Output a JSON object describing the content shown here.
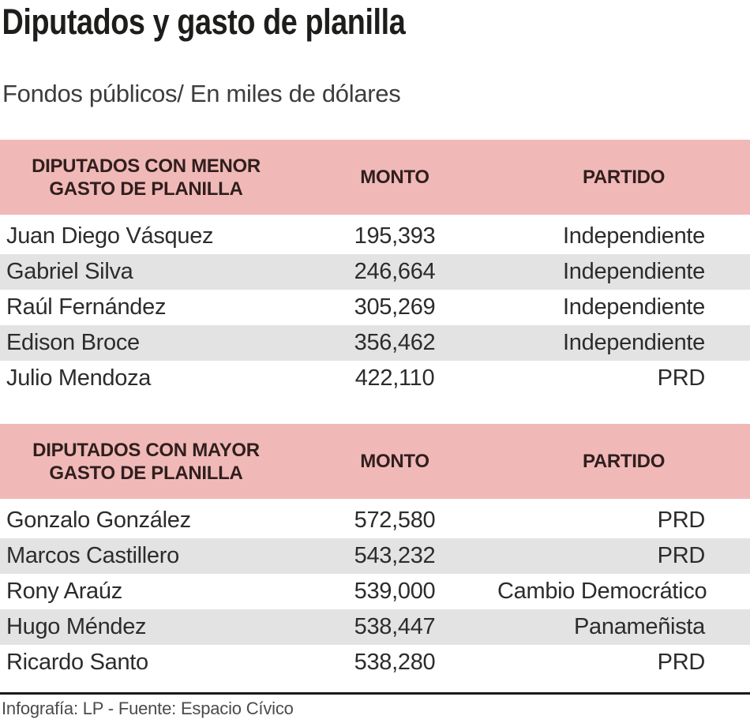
{
  "header": {
    "title": "Diputados y gasto de planilla",
    "subtitle": "Fondos públicos/ En miles de dólares"
  },
  "tables": [
    {
      "header": {
        "label_line1": "DIPUTADOS CON MENOR",
        "label_line2": "GASTO DE PLANILLA",
        "monto": "MONTO",
        "partido": "PARTIDO"
      },
      "rows": [
        {
          "name": "Juan Diego Vásquez",
          "monto": "195,393",
          "partido": "Independiente"
        },
        {
          "name": "Gabriel Silva",
          "monto": "246,664",
          "partido": "Independiente"
        },
        {
          "name": "Raúl Fernández",
          "monto": "305,269",
          "partido": "Independiente"
        },
        {
          "name": "Edison Broce",
          "monto": "356,462",
          "partido": "Independiente"
        },
        {
          "name": "Julio Mendoza",
          "monto": "422,110",
          "partido": "PRD"
        }
      ]
    },
    {
      "header": {
        "label_line1": "DIPUTADOS CON MAYOR",
        "label_line2": "GASTO DE PLANILLA",
        "monto": "MONTO",
        "partido": "PARTIDO"
      },
      "rows": [
        {
          "name": "Gonzalo González",
          "monto": "572,580",
          "partido": "PRD"
        },
        {
          "name": "Marcos Castillero",
          "monto": "543,232",
          "partido": "PRD"
        },
        {
          "name": "Rony Araúz",
          "monto": "539,000",
          "partido": "Cambio Democrático"
        },
        {
          "name": "Hugo Méndez",
          "monto": "538,447",
          "partido": "Panameñista"
        },
        {
          "name": "Ricardo Santo",
          "monto": "538,280",
          "partido": "PRD"
        }
      ]
    }
  ],
  "footer": {
    "credit": "Infografía: LP - Fuente: Espacio Cívico"
  },
  "colors": {
    "header_band_bg": "#f0b9b7",
    "alt_row_bg": "#e3e3e3",
    "title_color": "#1d1d1b",
    "subtitle_color": "#3d3d3c",
    "body_text": "#2c2c2b",
    "header_text": "#301f1e",
    "credit_text": "#4b4b4a",
    "rule_color": "#1a1a1a"
  },
  "chart_data": [
    {
      "type": "table",
      "title": "Diputados y gasto de planilla",
      "subtitle": "Fondos públicos/ En miles de dólares",
      "section": "DIPUTADOS CON MENOR GASTO DE PLANILLA",
      "columns": [
        "DIPUTADOS CON MENOR GASTO DE PLANILLA",
        "MONTO",
        "PARTIDO"
      ],
      "units": "miles de dólares",
      "rows": [
        {
          "diputado": "Juan Diego Vásquez",
          "monto": 195393,
          "partido": "Independiente"
        },
        {
          "diputado": "Gabriel Silva",
          "monto": 246664,
          "partido": "Independiente"
        },
        {
          "diputado": "Raúl Fernández",
          "monto": 305269,
          "partido": "Independiente"
        },
        {
          "diputado": "Edison Broce",
          "monto": 356462,
          "partido": "Independiente"
        },
        {
          "diputado": "Julio Mendoza",
          "monto": 422110,
          "partido": "PRD"
        }
      ]
    },
    {
      "type": "table",
      "section": "DIPUTADOS CON MAYOR GASTO DE PLANILLA",
      "columns": [
        "DIPUTADOS CON MAYOR GASTO DE PLANILLA",
        "MONTO",
        "PARTIDO"
      ],
      "units": "miles de dólares",
      "rows": [
        {
          "diputado": "Gonzalo González",
          "monto": 572580,
          "partido": "PRD"
        },
        {
          "diputado": "Marcos Castillero",
          "monto": 543232,
          "partido": "PRD"
        },
        {
          "diputado": "Rony Araúz",
          "monto": 539000,
          "partido": "Cambio Democrático"
        },
        {
          "diputado": "Hugo Méndez",
          "monto": 538447,
          "partido": "Panameñista"
        },
        {
          "diputado": "Ricardo Santo",
          "monto": 538280,
          "partido": "PRD"
        }
      ]
    }
  ]
}
